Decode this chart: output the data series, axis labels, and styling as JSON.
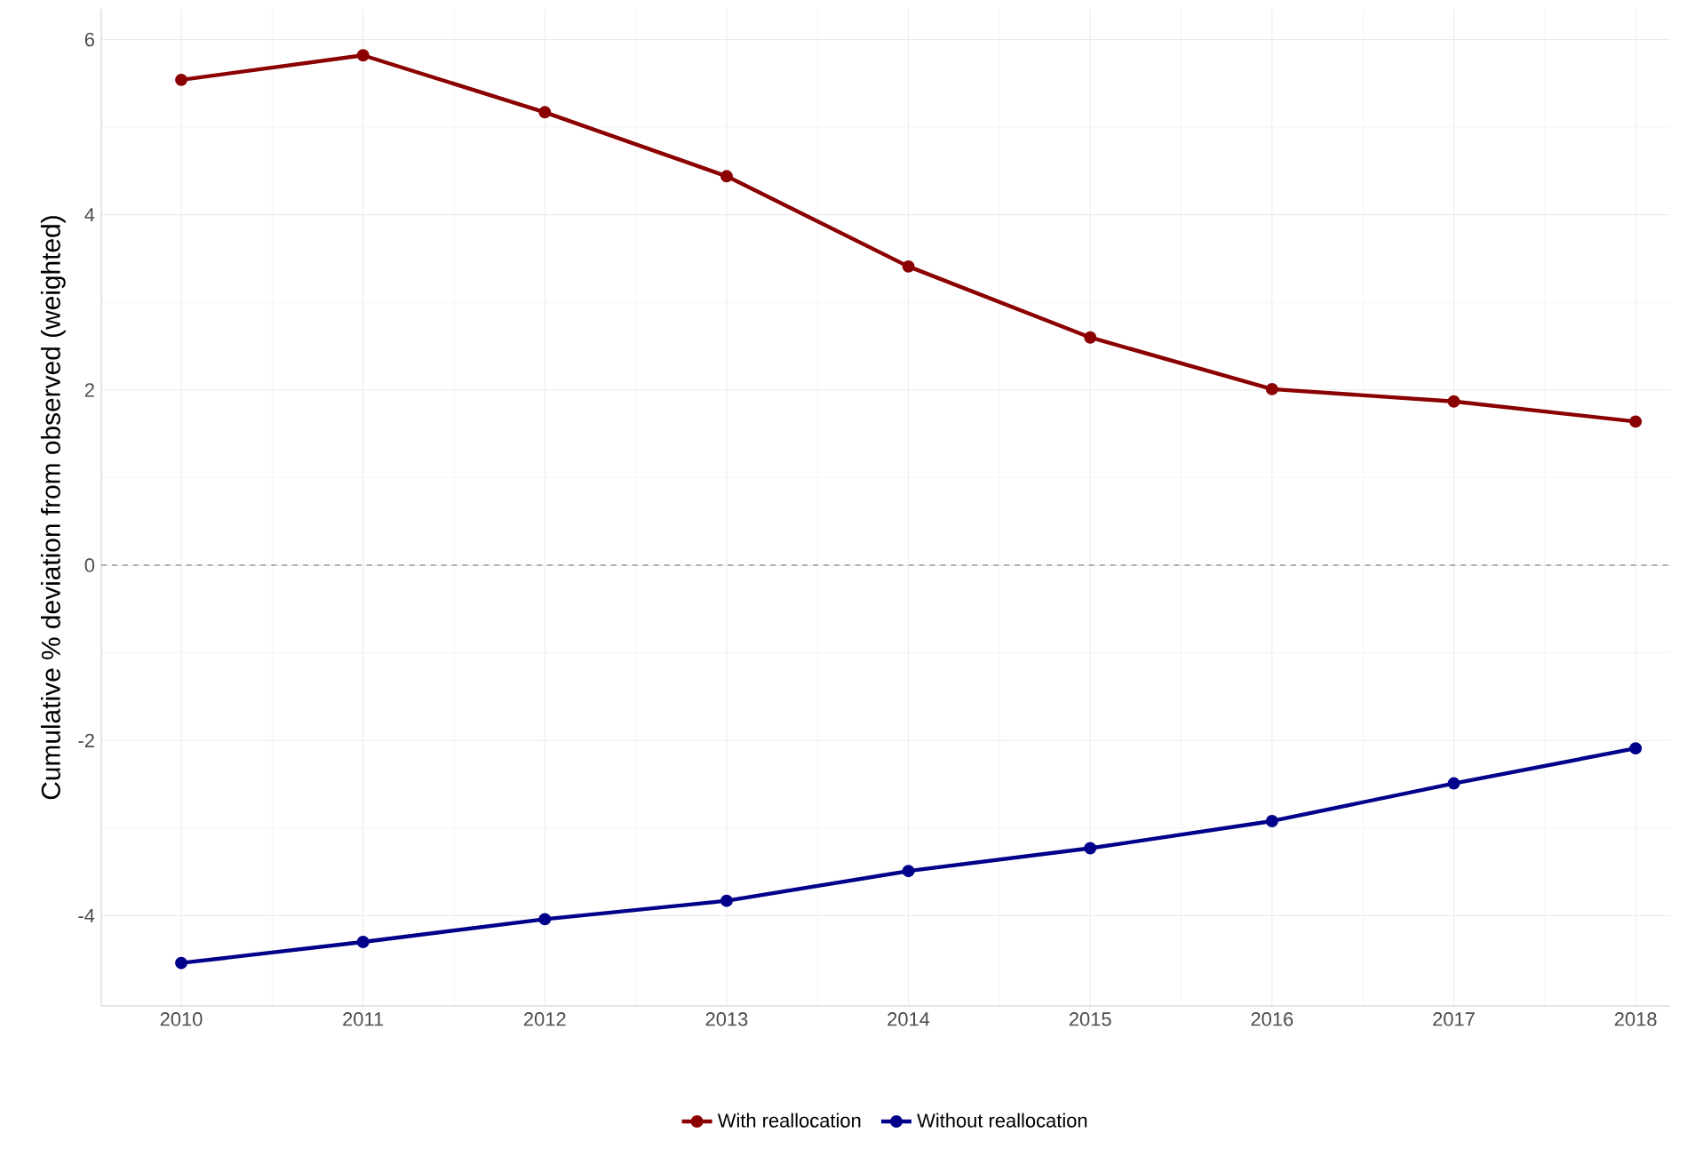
{
  "chart_data": {
    "type": "line",
    "ylabel": "Cumulative % deviation from observed (weighted)",
    "x": [
      2010,
      2011,
      2012,
      2013,
      2014,
      2015,
      2016,
      2017,
      2018
    ],
    "series": [
      {
        "name": "With reallocation",
        "color": "#8b0000",
        "values": [
          5.54,
          5.82,
          5.17,
          4.44,
          3.41,
          2.6,
          2.01,
          1.87,
          1.64
        ]
      },
      {
        "name": "Without reallocation",
        "color": "#00008b",
        "values": [
          -4.54,
          -4.3,
          -4.04,
          -3.83,
          -3.49,
          -3.23,
          -2.92,
          -2.49,
          -2.09
        ]
      }
    ],
    "xlim": [
      2009.56,
      2018.19
    ],
    "ylim": [
      -5.03,
      6.35
    ],
    "xticks": [
      2010,
      2011,
      2012,
      2013,
      2014,
      2015,
      2016,
      2017,
      2018
    ],
    "yticks": [
      -4,
      -2,
      0,
      2,
      4,
      6
    ],
    "ref_lines": [
      {
        "axis": "y",
        "value": 0,
        "color": "#999999",
        "line_style": "dashed"
      }
    ],
    "grid": true,
    "legend": "bottom",
    "marker": "circle",
    "line_style": "solid"
  }
}
